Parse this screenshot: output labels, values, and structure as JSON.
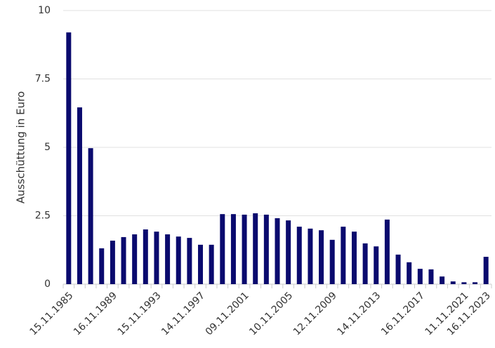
{
  "chart_data": {
    "type": "bar",
    "y_label": "Ausschüttung in Euro",
    "categories": [
      "15.11.1985",
      null,
      null,
      null,
      "16.11.1989",
      null,
      null,
      null,
      "15.11.1993",
      null,
      null,
      null,
      "14.11.1997",
      null,
      null,
      null,
      "09.11.2001",
      null,
      null,
      null,
      "10.11.2005",
      null,
      null,
      null,
      "12.11.2009",
      null,
      null,
      null,
      "14.11.2013",
      null,
      null,
      null,
      "16.11.2017",
      null,
      null,
      null,
      "11.11.2021",
      null,
      "16.11.2023"
    ],
    "values": [
      9.2,
      6.46,
      4.97,
      1.31,
      1.59,
      1.72,
      1.82,
      2.0,
      1.92,
      1.82,
      1.74,
      1.69,
      1.44,
      1.44,
      2.56,
      2.56,
      2.54,
      2.59,
      2.54,
      2.41,
      2.33,
      2.1,
      2.03,
      1.97,
      1.62,
      2.1,
      1.92,
      1.49,
      1.38,
      2.36,
      1.08,
      0.8,
      0.56,
      0.54,
      0.28,
      0.1,
      0.07,
      0.07,
      1.0
    ],
    "color": "#0a0a6e",
    "ylim": [
      0,
      10
    ],
    "yticks": [
      0,
      2.5,
      5,
      7.5,
      10
    ],
    "grid": true
  }
}
